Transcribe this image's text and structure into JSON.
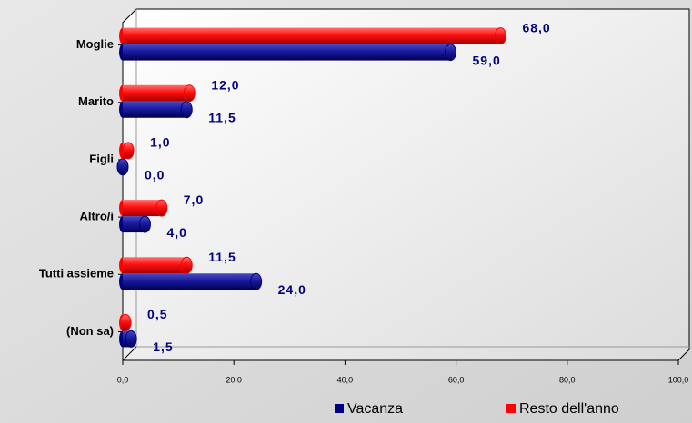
{
  "chart_data": {
    "type": "bar",
    "orientation": "horizontal",
    "categories": [
      "Moglie",
      "Marito",
      "Figli",
      "Altro/i",
      "Tutti assieme",
      "(Non sa)"
    ],
    "series": [
      {
        "name": "Vacanza",
        "color": "#000080",
        "values": [
          59,
          11.5,
          0,
          4,
          24,
          1.5
        ],
        "value_labels": [
          "59,0",
          "11,5",
          "0,0",
          "4,0",
          "24,0",
          "1,5"
        ]
      },
      {
        "name": "Resto dell'anno",
        "color": "#ff0000",
        "values": [
          68,
          12,
          1,
          7,
          11.5,
          0.5
        ],
        "value_labels": [
          "68,0",
          "12,0",
          "1,0",
          "7,0",
          "11,5",
          "0,5"
        ]
      }
    ],
    "xlim": [
      0,
      100
    ],
    "xticks": [
      {
        "value": 0,
        "label": "0,0"
      },
      {
        "value": 20,
        "label": "20,0"
      },
      {
        "value": 40,
        "label": "40,0"
      },
      {
        "value": 60,
        "label": "60,0"
      },
      {
        "value": 80,
        "label": "80,0"
      },
      {
        "value": 100,
        "label": "100,0"
      }
    ],
    "legend": "bottom"
  }
}
